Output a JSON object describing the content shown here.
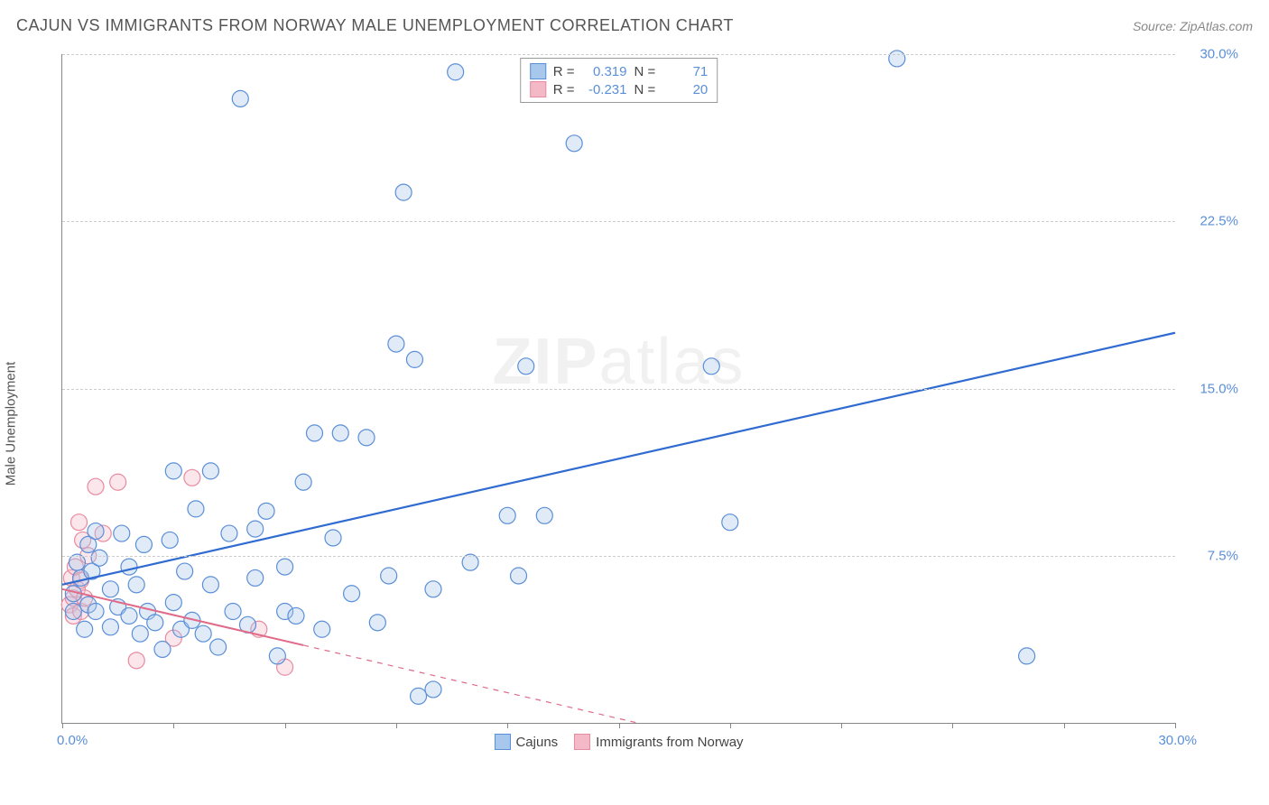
{
  "title": "CAJUN VS IMMIGRANTS FROM NORWAY MALE UNEMPLOYMENT CORRELATION CHART",
  "source": "Source: ZipAtlas.com",
  "y_axis_label": "Male Unemployment",
  "watermark": {
    "zip": "ZIP",
    "atlas": "atlas"
  },
  "chart": {
    "type": "scatter",
    "background_color": "#ffffff",
    "grid_color": "#cccccc",
    "axis_color": "#888888",
    "tick_color": "#5a8fd8",
    "xlim": [
      0,
      30
    ],
    "ylim": [
      0,
      30
    ],
    "x_tick_positions": [
      0,
      3,
      6,
      9,
      12,
      15,
      18,
      21,
      24,
      27,
      30
    ],
    "x_label_min": "0.0%",
    "x_label_max": "30.0%",
    "y_ticks": [
      {
        "v": 7.5,
        "label": "7.5%"
      },
      {
        "v": 15.0,
        "label": "15.0%"
      },
      {
        "v": 22.5,
        "label": "22.5%"
      },
      {
        "v": 30.0,
        "label": "30.0%"
      }
    ],
    "marker_radius": 9,
    "marker_stroke_width": 1.2,
    "marker_fill_opacity": 0.35
  },
  "series": {
    "cajuns": {
      "label": "Cajuns",
      "color_fill": "#a8c7ec",
      "color_stroke": "#5a8fd8",
      "R_label": "R =",
      "R": "0.319",
      "N_label": "N =",
      "N": "71",
      "trend": {
        "x1": 0,
        "y1": 6.2,
        "x2": 30,
        "y2": 17.5,
        "solid_until_x": 30,
        "width": 2.2
      },
      "points": [
        [
          0.3,
          5.0
        ],
        [
          0.3,
          5.8
        ],
        [
          0.4,
          7.2
        ],
        [
          0.5,
          6.5
        ],
        [
          0.6,
          4.2
        ],
        [
          0.7,
          8.0
        ],
        [
          0.7,
          5.3
        ],
        [
          0.8,
          6.8
        ],
        [
          0.9,
          5.0
        ],
        [
          0.9,
          8.6
        ],
        [
          1.0,
          7.4
        ],
        [
          1.3,
          6.0
        ],
        [
          1.3,
          4.3
        ],
        [
          1.5,
          5.2
        ],
        [
          1.6,
          8.5
        ],
        [
          1.8,
          4.8
        ],
        [
          1.8,
          7.0
        ],
        [
          2.0,
          6.2
        ],
        [
          2.1,
          4.0
        ],
        [
          2.2,
          8.0
        ],
        [
          2.3,
          5.0
        ],
        [
          2.5,
          4.5
        ],
        [
          2.7,
          3.3
        ],
        [
          2.9,
          8.2
        ],
        [
          3.0,
          5.4
        ],
        [
          3.0,
          11.3
        ],
        [
          3.2,
          4.2
        ],
        [
          3.3,
          6.8
        ],
        [
          3.5,
          4.6
        ],
        [
          3.6,
          9.6
        ],
        [
          3.8,
          4.0
        ],
        [
          4.0,
          11.3
        ],
        [
          4.0,
          6.2
        ],
        [
          4.2,
          3.4
        ],
        [
          4.5,
          8.5
        ],
        [
          4.6,
          5.0
        ],
        [
          4.8,
          28.0
        ],
        [
          5.0,
          4.4
        ],
        [
          5.2,
          6.5
        ],
        [
          5.5,
          9.5
        ],
        [
          5.8,
          3.0
        ],
        [
          6.0,
          5.0
        ],
        [
          6.3,
          4.8
        ],
        [
          6.5,
          10.8
        ],
        [
          6.8,
          13.0
        ],
        [
          7.0,
          4.2
        ],
        [
          7.3,
          8.3
        ],
        [
          7.5,
          13.0
        ],
        [
          7.8,
          5.8
        ],
        [
          8.2,
          12.8
        ],
        [
          8.5,
          4.5
        ],
        [
          8.8,
          6.6
        ],
        [
          9.0,
          17.0
        ],
        [
          9.2,
          23.8
        ],
        [
          9.5,
          16.3
        ],
        [
          9.6,
          1.2
        ],
        [
          10.0,
          6.0
        ],
        [
          10.0,
          1.5
        ],
        [
          10.6,
          29.2
        ],
        [
          11.0,
          7.2
        ],
        [
          12.0,
          9.3
        ],
        [
          12.3,
          6.6
        ],
        [
          12.5,
          16.0
        ],
        [
          13.0,
          9.3
        ],
        [
          13.8,
          26.0
        ],
        [
          17.5,
          16.0
        ],
        [
          18.0,
          9.0
        ],
        [
          22.5,
          29.8
        ],
        [
          26.0,
          3.0
        ],
        [
          5.2,
          8.7
        ],
        [
          6.0,
          7.0
        ]
      ]
    },
    "norway": {
      "label": "Immigrants from Norway",
      "color_fill": "#f4b9c6",
      "color_stroke": "#e88aa0",
      "R_label": "R =",
      "R": "-0.231",
      "N_label": "N =",
      "N": "20",
      "trend": {
        "x1": 0,
        "y1": 6.0,
        "x2": 15.5,
        "y2": 0,
        "solid_until_x": 6.5,
        "width": 2.0
      },
      "points": [
        [
          0.2,
          5.3
        ],
        [
          0.25,
          6.5
        ],
        [
          0.3,
          4.8
        ],
        [
          0.3,
          5.6
        ],
        [
          0.35,
          7.0
        ],
        [
          0.4,
          6.0
        ],
        [
          0.45,
          9.0
        ],
        [
          0.5,
          5.0
        ],
        [
          0.5,
          6.4
        ],
        [
          0.55,
          8.2
        ],
        [
          0.6,
          5.6
        ],
        [
          0.7,
          7.5
        ],
        [
          0.9,
          10.6
        ],
        [
          1.1,
          8.5
        ],
        [
          1.5,
          10.8
        ],
        [
          2.0,
          2.8
        ],
        [
          3.0,
          3.8
        ],
        [
          3.5,
          11.0
        ],
        [
          5.3,
          4.2
        ],
        [
          6.0,
          2.5
        ]
      ]
    }
  }
}
